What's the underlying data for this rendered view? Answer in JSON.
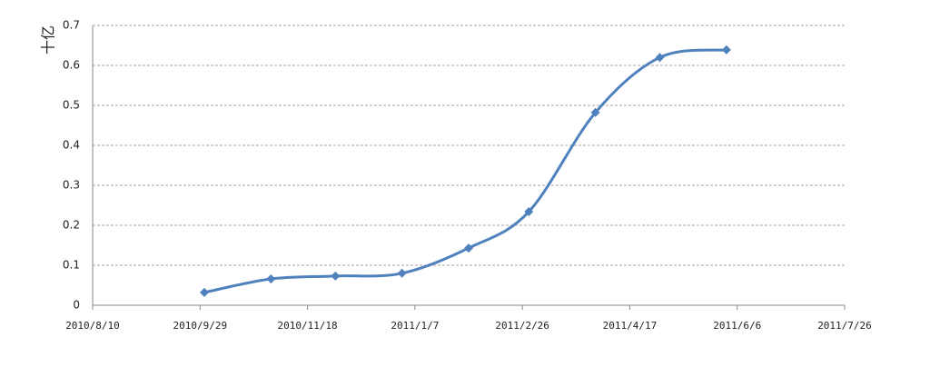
{
  "chart_data": {
    "type": "line",
    "y_label": "十亿",
    "x": [
      "2010/10/1",
      "2010/11/1",
      "2010/12/1",
      "2011/1/1",
      "2011/2/1",
      "2011/3/1",
      "2011/4/1",
      "2011/5/1",
      "2011/6/1"
    ],
    "series": [
      {
        "name": "十亿",
        "color": "#4f81bd",
        "values": [
          0.032,
          0.066,
          0.073,
          0.08,
          0.143,
          0.234,
          0.482,
          0.62,
          0.639
        ]
      }
    ],
    "xlim": [
      "2010/8/10",
      "2011/7/26"
    ],
    "xticks": [
      "2010/8/10",
      "2010/9/29",
      "2010/11/18",
      "2011/1/7",
      "2011/2/26",
      "2011/4/17",
      "2011/6/6",
      "2011/7/26"
    ],
    "ylim": [
      0,
      0.7
    ],
    "yticks": [
      0,
      0.1,
      0.2,
      0.3,
      0.4,
      0.5,
      0.6,
      0.7
    ],
    "grid": true,
    "smooth": true
  }
}
